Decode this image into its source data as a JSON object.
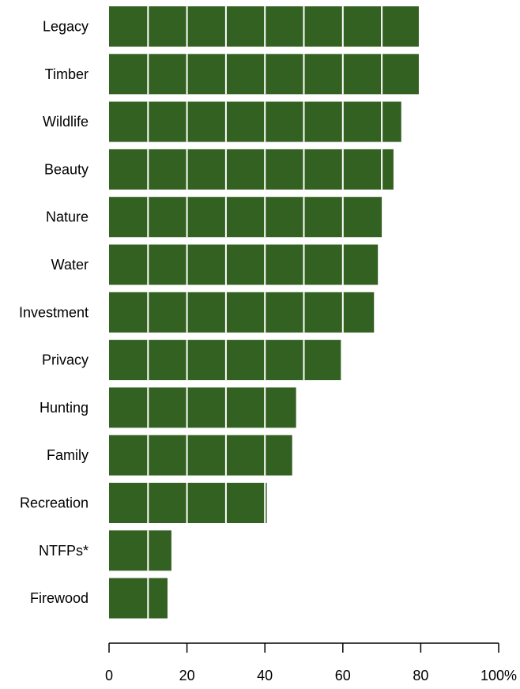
{
  "chart_data": {
    "type": "bar",
    "orientation": "horizontal",
    "categories": [
      "Legacy",
      "Timber",
      "Wildlife",
      "Beauty",
      "Nature",
      "Water",
      "Investment",
      "Privacy",
      "Hunting",
      "Family",
      "Recreation",
      "NTFPs*",
      "Firewood"
    ],
    "values": [
      79.5,
      79.5,
      75,
      73,
      70,
      69,
      68,
      59.5,
      48,
      47,
      40.5,
      16,
      15
    ],
    "xlim": [
      0,
      100
    ],
    "xticks": [
      0,
      20,
      40,
      60,
      80,
      100
    ],
    "xtick_labels": [
      "0",
      "20",
      "40",
      "60",
      "80",
      "100%"
    ],
    "title": "",
    "xlabel": "",
    "ylabel": "",
    "grid": "vertical white lines every 10 units drawn over bars",
    "legend": "none",
    "bar_color": "#336121",
    "grid_color": "#ffffff"
  }
}
